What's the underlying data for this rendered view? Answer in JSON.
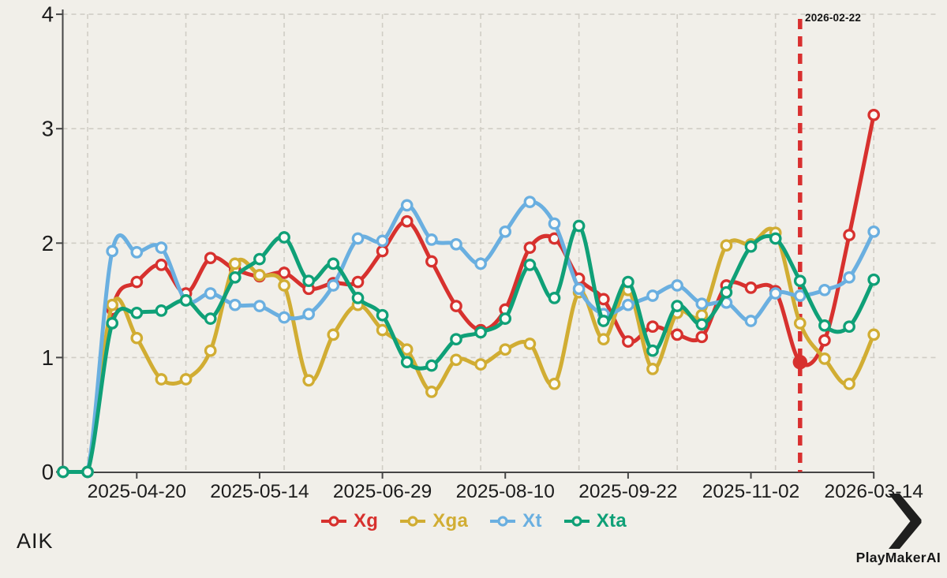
{
  "footer": {
    "team_label": "AIK",
    "brand": "PlayMakerAI"
  },
  "colors": {
    "background": "#f1efe9",
    "grid": "#d0cdc5",
    "axis": "#454545",
    "tick_text": "#1c1c1c",
    "marker_fill": "#fafaf6"
  },
  "chart_data": {
    "type": "line",
    "title": "",
    "xlabel": "",
    "ylabel": "",
    "grid": "dashed",
    "legend_position": "bottom",
    "ylim": [
      0,
      4
    ],
    "y_tick_labels": [
      "0",
      "1",
      "2",
      "3",
      "4"
    ],
    "x_tick_indices": [
      3,
      8,
      13,
      18,
      23,
      28,
      33
    ],
    "x_tick_labels": [
      "2025-04-20",
      "2025-05-14",
      "2025-06-29",
      "2025-08-10",
      "2025-09-22",
      "2025-11-02",
      "2026-03-14"
    ],
    "x_grid_indices": [
      1,
      5,
      9,
      13,
      17,
      21,
      25,
      29,
      33
    ],
    "event_line": {
      "x_index": 30,
      "label": "2026-02-22",
      "color": "#d92f2f",
      "marker_series": "Xg"
    },
    "series": [
      {
        "name": "Xg",
        "color": "#d7312e",
        "values": [
          0,
          0,
          1.42,
          1.66,
          1.81,
          1.56,
          1.87,
          1.77,
          1.71,
          1.74,
          1.6,
          1.65,
          1.66,
          1.93,
          2.19,
          1.84,
          1.45,
          1.24,
          1.42,
          1.96,
          2.04,
          1.69,
          1.51,
          1.14,
          1.27,
          1.2,
          1.18,
          1.63,
          1.61,
          1.58,
          0.96,
          1.15,
          2.07,
          3.12
        ]
      },
      {
        "name": "Xga",
        "color": "#d1ad33",
        "values": [
          0,
          0,
          1.46,
          1.17,
          0.81,
          0.81,
          1.06,
          1.82,
          1.72,
          1.63,
          0.8,
          1.2,
          1.46,
          1.24,
          1.07,
          0.7,
          0.98,
          0.94,
          1.07,
          1.12,
          0.77,
          1.57,
          1.16,
          1.59,
          0.9,
          1.39,
          1.37,
          1.98,
          1.99,
          2.09,
          1.3,
          0.99,
          0.77,
          1.2
        ]
      },
      {
        "name": "Xt",
        "color": "#6aafe0",
        "values": [
          0,
          0,
          1.93,
          1.92,
          1.96,
          1.5,
          1.56,
          1.46,
          1.45,
          1.35,
          1.38,
          1.63,
          2.04,
          2.02,
          2.33,
          2.03,
          1.99,
          1.82,
          2.1,
          2.36,
          2.17,
          1.6,
          1.38,
          1.46,
          1.54,
          1.63,
          1.47,
          1.48,
          1.32,
          1.56,
          1.54,
          1.59,
          1.7,
          2.1
        ]
      },
      {
        "name": "Xta",
        "color": "#0fa077",
        "values": [
          0,
          0,
          1.3,
          1.39,
          1.41,
          1.5,
          1.34,
          1.7,
          1.86,
          2.05,
          1.67,
          1.82,
          1.52,
          1.37,
          0.96,
          0.93,
          1.16,
          1.22,
          1.34,
          1.81,
          1.52,
          2.15,
          1.32,
          1.66,
          1.06,
          1.45,
          1.29,
          1.57,
          1.97,
          2.04,
          1.67,
          1.28,
          1.27,
          1.68
        ]
      }
    ]
  }
}
